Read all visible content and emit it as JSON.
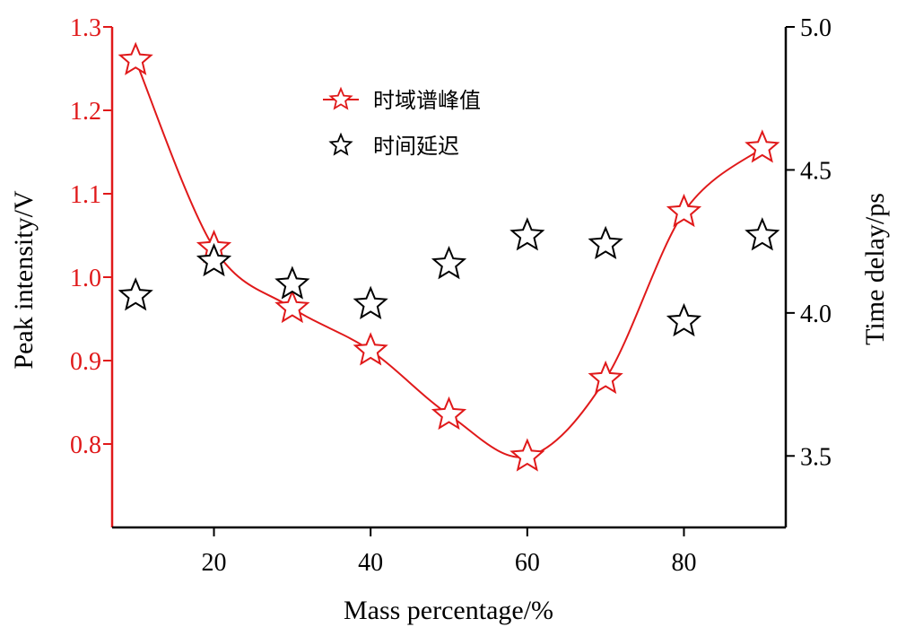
{
  "chart_data": {
    "type": "scatter",
    "xlabel": "Mass percentage/%",
    "ylabel_left": "Peak intensity/V",
    "ylabel_right": "Time delay/ps",
    "x_ticks": [
      20,
      40,
      60,
      80
    ],
    "y_left_ticks": [
      "0.8",
      "0.9",
      "1.0",
      "1.1",
      "1.2",
      "1.3"
    ],
    "y_right_ticks": [
      "3.5",
      "4.0",
      "4.5",
      "5.0"
    ],
    "xlim": [
      7,
      93
    ],
    "ylim_left": [
      0.7,
      1.3
    ],
    "ylim_right": [
      3.25,
      5.0
    ],
    "grid": false,
    "legend_position": "top-center",
    "colors": {
      "left_axis": "#e0191a",
      "right_axis": "#000000",
      "peak": "#e0191a",
      "delay": "#000000"
    },
    "x": [
      10,
      20,
      30,
      40,
      50,
      60,
      70,
      80,
      90
    ],
    "series": [
      {
        "name": "时域谱峰值",
        "axis": "left",
        "marker": "star",
        "line": "smooth",
        "values": [
          1.26,
          1.035,
          0.963,
          0.912,
          0.835,
          0.785,
          0.878,
          1.078,
          1.155
        ]
      },
      {
        "name": "时间延迟",
        "axis": "right",
        "marker": "star",
        "line": "none",
        "values": [
          4.06,
          4.18,
          4.1,
          4.03,
          4.17,
          4.27,
          4.24,
          3.97,
          4.27
        ]
      }
    ]
  }
}
